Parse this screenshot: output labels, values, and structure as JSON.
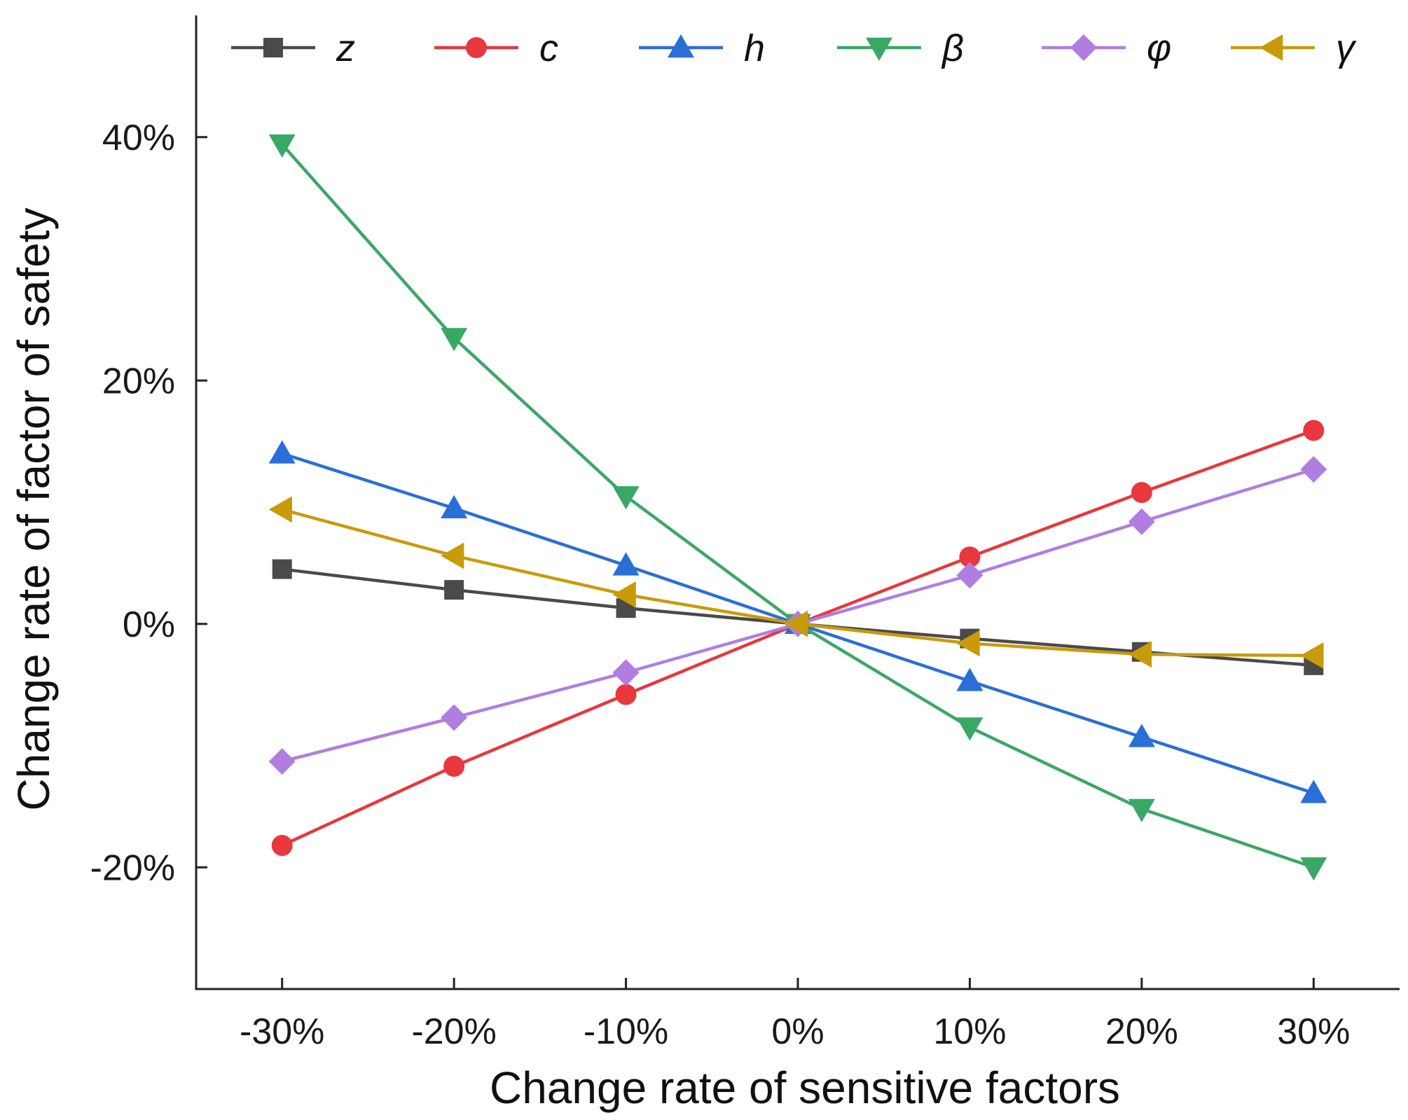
{
  "chart_data": {
    "type": "line",
    "title": "",
    "xlabel": "Change rate of sensitive factors",
    "ylabel": "Change rate of factor of safety",
    "x": [
      -30,
      -20,
      -10,
      0,
      10,
      20,
      30
    ],
    "x_tick_labels": [
      "-30%",
      "-20%",
      "-10%",
      "0%",
      "10%",
      "20%",
      "30%"
    ],
    "xlim": [
      -35,
      35
    ],
    "y_ticks": [
      -20,
      0,
      20,
      40
    ],
    "y_tick_labels": [
      "-20%",
      "0%",
      "20%",
      "40%"
    ],
    "ylim": [
      -30,
      50
    ],
    "grid": false,
    "legend_position": "top",
    "series": [
      {
        "name": "z",
        "color": "#4a4a4a",
        "marker": "square",
        "values": [
          4.5,
          2.8,
          1.3,
          0,
          -1.2,
          -2.3,
          -3.4
        ]
      },
      {
        "name": "c",
        "color": "#e8373d",
        "marker": "circle",
        "values": [
          -18.2,
          -11.7,
          -5.8,
          0,
          5.5,
          10.8,
          15.9
        ]
      },
      {
        "name": "h",
        "color": "#2a6fd6",
        "marker": "triangle-up",
        "values": [
          14.0,
          9.5,
          4.8,
          0,
          -4.7,
          -9.3,
          -13.9
        ]
      },
      {
        "name": "β",
        "color": "#3aa865",
        "marker": "triangle-down",
        "values": [
          39.4,
          23.5,
          10.5,
          0,
          -8.5,
          -15.2,
          -20.0
        ]
      },
      {
        "name": "φ",
        "color": "#b07ee0",
        "marker": "diamond",
        "values": [
          -11.3,
          -7.7,
          -4.0,
          0,
          4.0,
          8.4,
          12.7
        ]
      },
      {
        "name": "γ",
        "color": "#c99a0a",
        "marker": "triangle-left",
        "values": [
          9.4,
          5.6,
          2.4,
          0,
          -1.6,
          -2.5,
          -2.6
        ]
      }
    ]
  }
}
